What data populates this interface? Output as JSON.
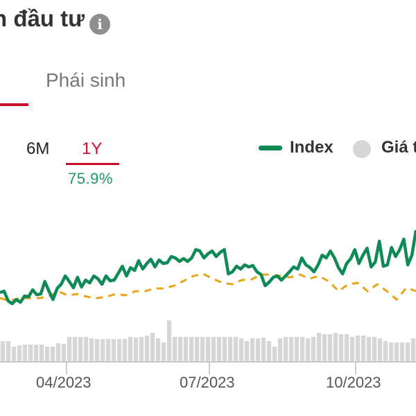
{
  "header": {
    "title": "h đầu tư",
    "info_icon": "info-icon"
  },
  "tabs": {
    "derivative_label": "Phái sinh"
  },
  "range": {
    "options": [
      "6M",
      "1Y"
    ],
    "selected": "1Y",
    "selected_change": "75.9%"
  },
  "legend": {
    "index_label": "Index",
    "price_label": "Giá t"
  },
  "colors": {
    "accent_red": "#c8102e",
    "index_green": "#0f8a57",
    "positive_green": "#1c9a5d",
    "benchmark_orange": "#e8a31a",
    "volume_gray": "#d6d6d6"
  },
  "chart_data": {
    "type": "line",
    "x_tick_labels": [
      "04/2023",
      "07/2023",
      "10/2023"
    ],
    "series": [
      {
        "name": "Index",
        "style": "solid",
        "values": [
          422,
          420,
          434,
          438,
          432,
          436,
          427,
          428,
          418,
          425,
          424,
          406,
          420,
          432,
          416,
          410,
          398,
          406,
          415,
          400,
          414,
          404,
          408,
          398,
          402,
          410,
          398,
          405,
          404,
          394,
          384,
          398,
          386,
          390,
          376,
          388,
          380,
          374,
          385,
          375,
          380,
          379,
          370,
          372,
          377,
          373,
          377,
          372,
          360,
          362,
          372,
          366,
          362,
          370,
          364,
          360,
          395,
          392,
          384,
          388,
          382,
          385,
          383,
          392,
          396,
          412,
          407,
          400,
          398,
          404,
          398,
          392,
          385,
          388,
          372,
          382,
          386,
          392,
          382,
          368,
          372,
          362,
          372,
          386,
          395,
          380,
          373,
          360,
          380,
          368,
          358,
          385,
          378,
          348,
          384,
          382,
          357,
          370,
          360,
          345,
          382,
          368,
          332
        ]
      },
      {
        "name": "",
        "style": "dashed",
        "values": [
          430,
          434,
          430,
          430,
          430,
          428,
          420,
          426,
          424,
          428,
          430,
          428,
          424,
          426,
          420,
          420,
          416,
          416,
          412,
          405,
          398,
          395,
          402,
          408,
          410,
          404,
          403,
          396,
          396,
          398,
          400,
          396,
          402,
          398,
          406,
          420,
          410,
          408,
          420,
          410,
          420,
          432,
          415,
          420
        ]
      }
    ],
    "volume_bars": [
      30,
      30,
      22,
      24,
      25,
      25,
      25,
      25,
      22,
      22,
      27,
      26,
      36,
      36,
      36,
      36,
      34,
      33,
      33,
      33,
      33,
      33,
      33,
      36,
      35,
      36,
      38,
      42,
      34,
      28,
      60,
      36,
      36,
      36,
      36,
      36,
      36,
      36,
      36,
      36,
      36,
      36,
      36,
      34,
      30,
      34,
      34,
      35,
      30,
      22,
      34,
      36,
      36,
      36,
      36,
      34,
      36,
      42,
      40,
      40,
      42,
      40,
      40,
      36,
      38,
      38,
      36,
      36,
      34,
      30,
      28,
      28,
      28,
      28,
      34
    ]
  }
}
